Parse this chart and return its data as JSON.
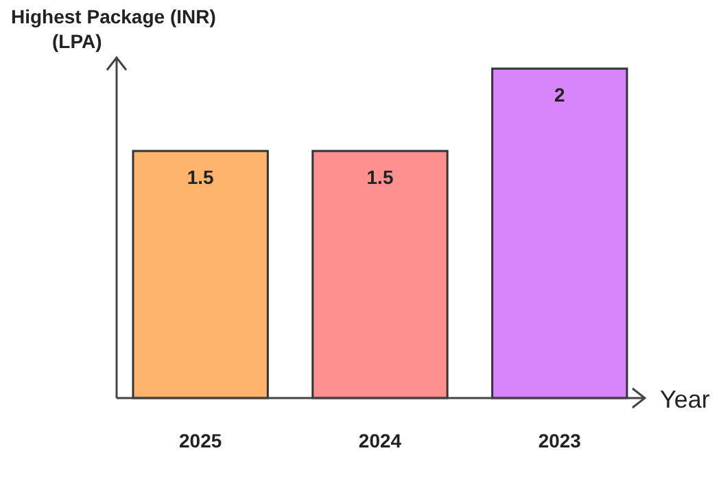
{
  "chart_data": {
    "type": "bar",
    "ylabel": "Highest Package (INR)\n(LPA)",
    "xlabel": "Year",
    "categories": [
      "2025",
      "2024",
      "2023"
    ],
    "values": [
      1.5,
      1.5,
      2
    ],
    "colors": [
      "#ffb46e",
      "#ff9090",
      "#d884fb"
    ],
    "data_labels": true
  }
}
